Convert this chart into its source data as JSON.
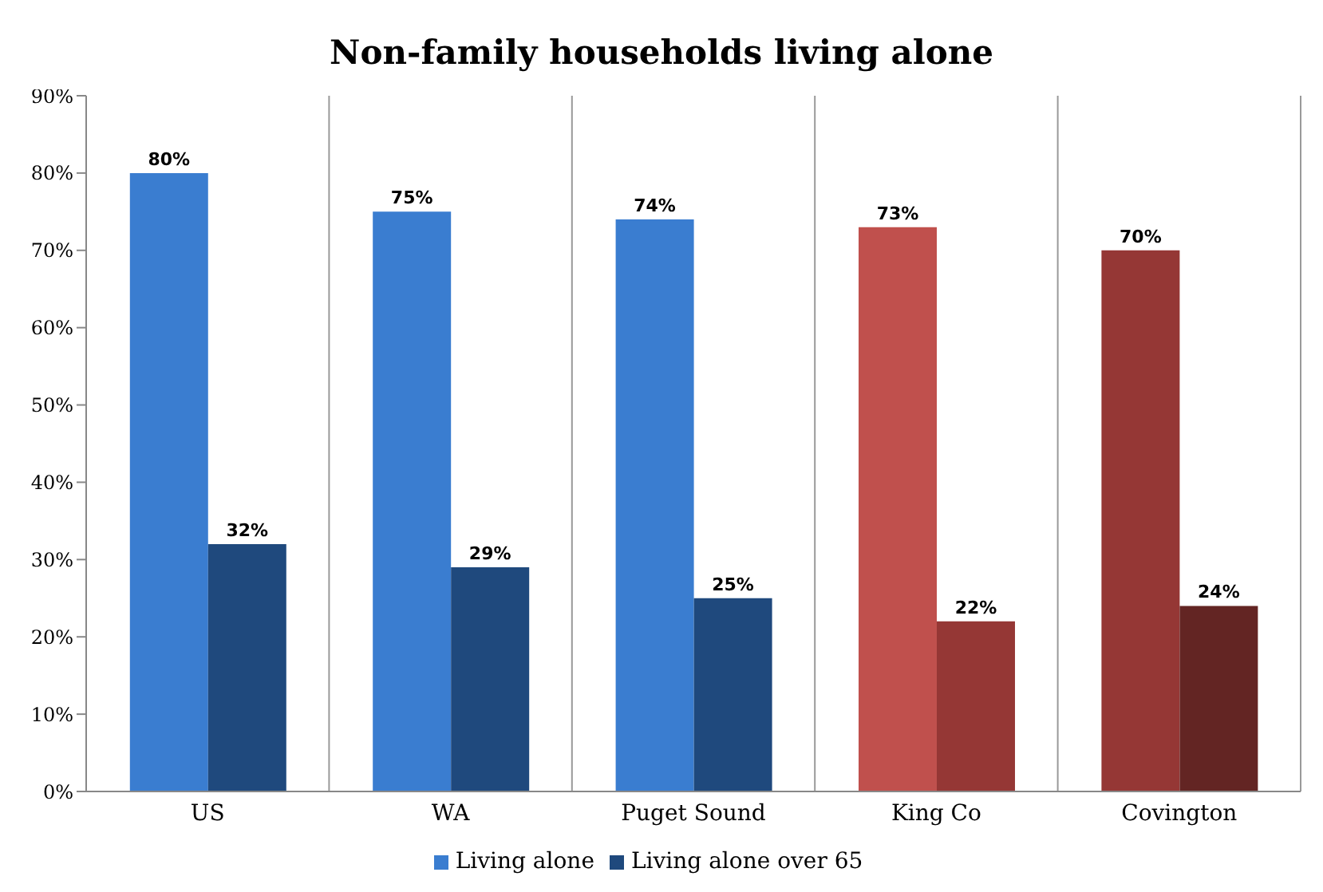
{
  "chart_data": {
    "type": "bar",
    "title": "Non-family households living alone",
    "categories": [
      "US",
      "WA",
      "Puget Sound",
      "King Co",
      "Covington"
    ],
    "series": [
      {
        "name": "Living alone",
        "color": "#3a7dd0",
        "colors": [
          "#3a7dd0",
          "#3a7dd0",
          "#3a7dd0",
          "#c0504d",
          "#953735"
        ],
        "values": [
          80,
          75,
          74,
          73,
          70
        ],
        "value_labels": [
          "80%",
          "75%",
          "74%",
          "73%",
          "70%"
        ]
      },
      {
        "name": "Living alone over 65",
        "color": "#1f497d",
        "colors": [
          "#1f497d",
          "#1f497d",
          "#1f497d",
          "#953735",
          "#632523"
        ],
        "values": [
          32,
          29,
          25,
          22,
          24
        ],
        "value_labels": [
          "32%",
          "29%",
          "25%",
          "22%",
          "24%"
        ]
      }
    ],
    "ylim": [
      0,
      90
    ],
    "yticks": [
      {
        "value": 0,
        "label": "0%"
      },
      {
        "value": 10,
        "label": "10%"
      },
      {
        "value": 20,
        "label": "20%"
      },
      {
        "value": 30,
        "label": "30%"
      },
      {
        "value": 40,
        "label": "40%"
      },
      {
        "value": 50,
        "label": "50%"
      },
      {
        "value": 60,
        "label": "60%"
      },
      {
        "value": 70,
        "label": "70%"
      },
      {
        "value": 80,
        "label": "80%"
      },
      {
        "value": 90,
        "label": "90%"
      }
    ],
    "grid": "x",
    "legend": "bottom"
  }
}
